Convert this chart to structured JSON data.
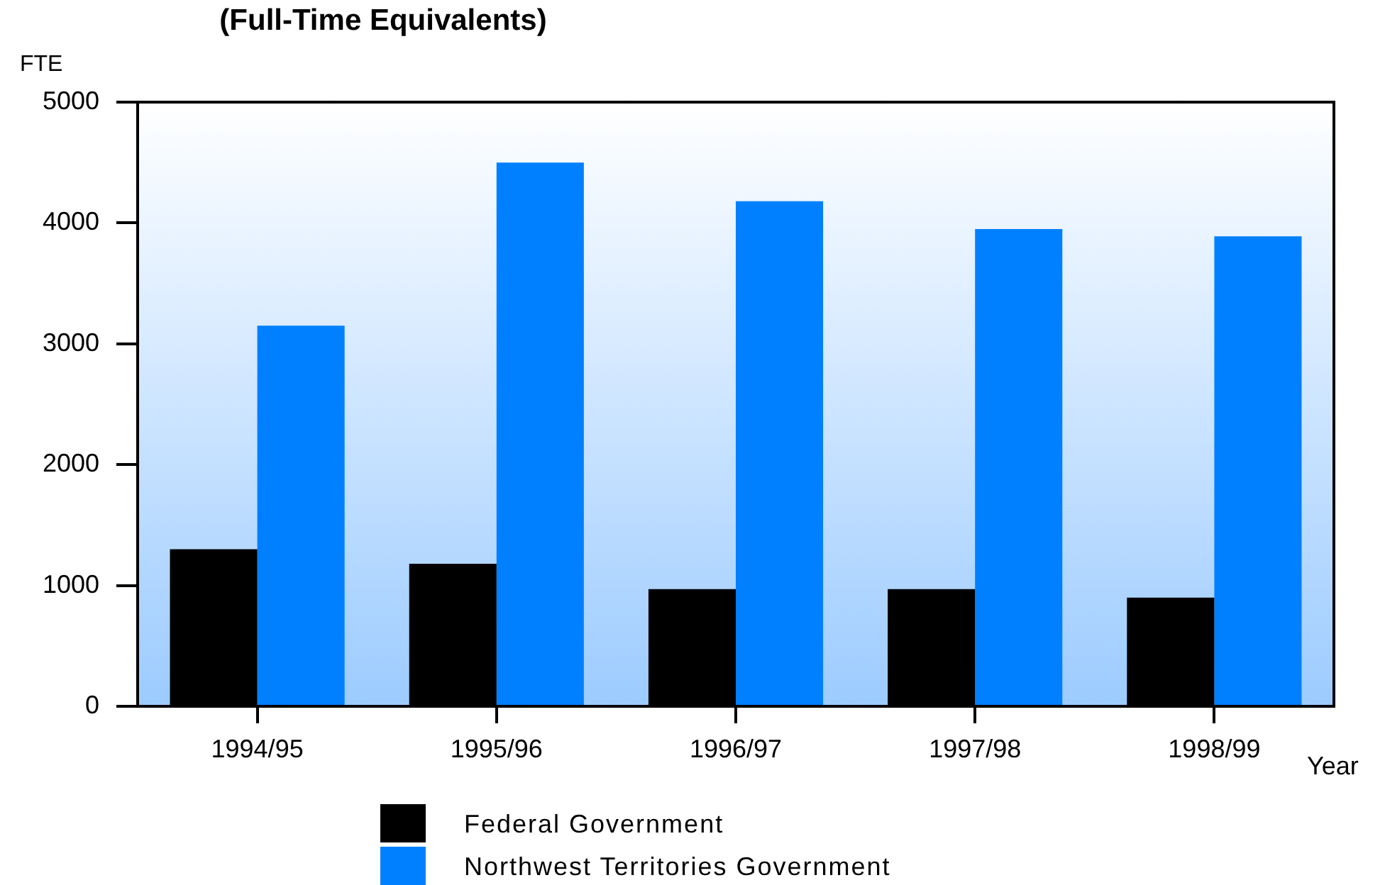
{
  "chart_data": {
    "type": "bar",
    "title": "(Full-Time Equivalents)",
    "ylabel": "FTE",
    "xlabel": "Year",
    "categories": [
      "1994/95",
      "1995/96",
      "1996/97",
      "1997/98",
      "1998/99"
    ],
    "series": [
      {
        "name": "Federal Government",
        "color": "#000000",
        "values": [
          1300,
          1180,
          970,
          970,
          900
        ]
      },
      {
        "name": "Northwest Territories Government",
        "color": "#0080ff",
        "values": [
          3150,
          4500,
          4180,
          3950,
          3890
        ]
      }
    ],
    "ylim": [
      0,
      5000
    ],
    "yticks": [
      0,
      1000,
      2000,
      3000,
      4000,
      5000
    ],
    "legend": "bottom"
  }
}
